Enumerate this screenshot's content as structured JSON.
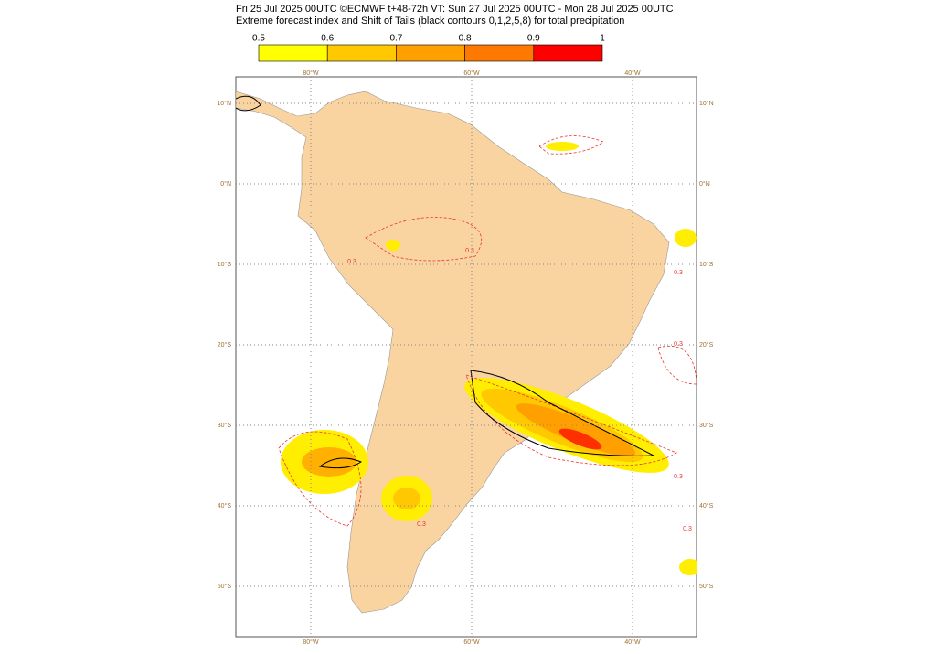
{
  "header": {
    "line1": "Fri 25 Jul 2025 00UTC ©ECMWF t+48-72h  VT: Sun 27 Jul 2025 00UTC - Mon 28 Jul 2025 00UTC",
    "line2": "Extreme forecast index and Shift of Tails (black contours 0,1,2,5,8) for total precipitation"
  },
  "colorbar": {
    "labels": [
      "0.5",
      "0.6",
      "0.7",
      "0.8",
      "0.9",
      "1"
    ],
    "colors": [
      "#ffff00",
      "#ffc800",
      "#ffa000",
      "#ff7800",
      "#ff0000"
    ]
  },
  "axis_labels": {
    "top": [
      "80°W",
      "60°W",
      "40°W"
    ],
    "bottom": [
      "80°W",
      "60°W",
      "40°W"
    ],
    "left": [
      "10°N",
      "0°N",
      "10°S",
      "20°S",
      "30°S",
      "40°S",
      "50°S"
    ],
    "right": [
      "10°N",
      "0°N",
      "10°S",
      "20°S",
      "30°S",
      "40°S",
      "50°S"
    ]
  },
  "contour_labels": [
    "0.3",
    "0.3",
    "0.3",
    "0.3",
    "0.3",
    "0.3",
    "0.3"
  ]
}
